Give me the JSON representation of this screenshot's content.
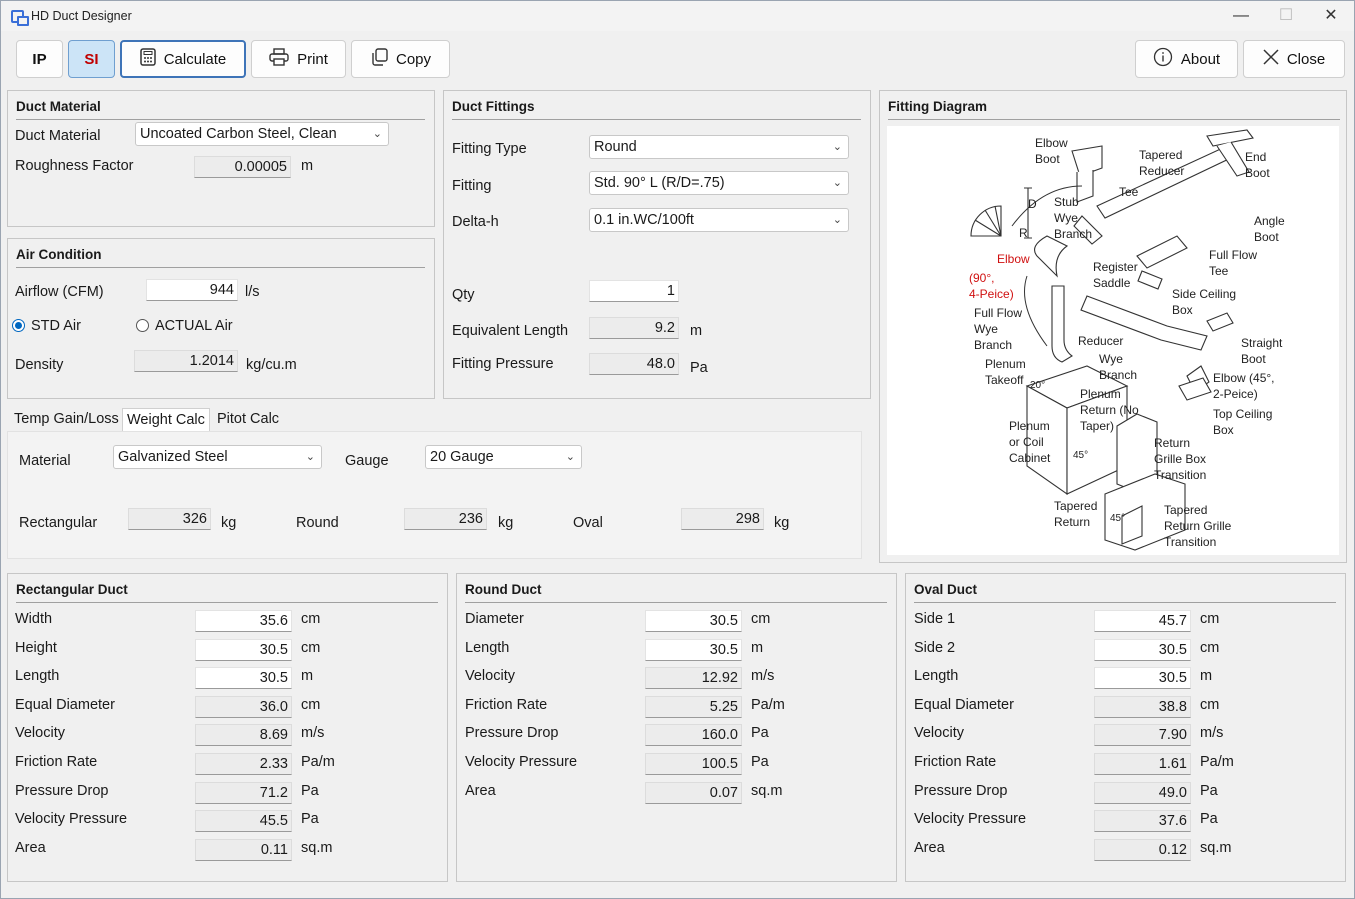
{
  "window": {
    "title": "HD Duct Designer",
    "minimize": "—",
    "maximize": "☐",
    "close": "✕"
  },
  "toolbar": {
    "ip": "IP",
    "si": "SI",
    "calculate": "Calculate",
    "print": "Print",
    "copy": "Copy",
    "about": "About",
    "close": "Close"
  },
  "duct_material": {
    "header": "Duct Material",
    "material_label": "Duct Material",
    "material_value": "Uncoated Carbon Steel, Clean",
    "roughness_label": "Roughness Factor",
    "roughness_value": "0.00005",
    "roughness_unit": "m"
  },
  "air_condition": {
    "header": "Air Condition",
    "airflow_label": "Airflow (CFM)",
    "airflow_value": "944",
    "airflow_unit": "l/s",
    "std_air": "STD Air",
    "actual_air": "ACTUAL Air",
    "density_label": "Density",
    "density_value": "1.2014",
    "density_unit": "kg/cu.m"
  },
  "fittings": {
    "header": "Duct Fittings",
    "type_label": "Fitting Type",
    "type_value": "Round",
    "fitting_label": "Fitting",
    "fitting_value": "Std. 90° L (R/D=.75)",
    "deltah_label": "Delta-h",
    "deltah_value": "0.1 in.WC/100ft",
    "qty_label": "Qty",
    "qty_value": "1",
    "eqlen_label": "Equivalent Length",
    "eqlen_value": "9.2",
    "eqlen_unit": "m",
    "pressure_label": "Fitting Pressure",
    "pressure_value": "48.0",
    "pressure_unit": "Pa"
  },
  "tabs": {
    "temp": "Temp Gain/Loss",
    "weight": "Weight Calc",
    "pitot": "Pitot Calc"
  },
  "weight": {
    "material_label": "Material",
    "material_value": "Galvanized Steel",
    "gauge_label": "Gauge",
    "gauge_value": "20 Gauge",
    "rect_label": "Rectangular",
    "rect_value": "326",
    "round_label": "Round",
    "round_value": "236",
    "oval_label": "Oval",
    "oval_value": "298",
    "unit": "kg"
  },
  "diagram": {
    "header": "Fitting Diagram",
    "labels": {
      "elbow_boot": "Elbow\nBoot",
      "tapered_reducer": "Tapered\nReducer",
      "end_boot": "End\nBoot",
      "tee": "Tee",
      "stub_wye": "Stub\nWye\nBranch",
      "angle_boot": "Angle\nBoot",
      "d": "D",
      "r": "R",
      "elbow": "Elbow",
      "elbow90": "(90°,\n4-Peice)",
      "register": "Register\nSaddle",
      "fullflow_tee": "Full Flow\nTee",
      "side_ceiling": "Side Ceiling\nBox",
      "fullflow_wye": "Full Flow\nWye\nBranch",
      "reducer": "Reducer",
      "wye_branch": "Wye\nBranch",
      "straight_boot": "Straight\nBoot",
      "plenum_takeoff": "Plenum\nTakeoff",
      "deg20": "20°",
      "plenum_return": "Plenum\nReturn (No\nTaper)",
      "elbow45": "Elbow (45°,\n2-Peice)",
      "top_ceiling": "Top Ceiling\nBox",
      "plenum_coil": "Plenum\nor Coil\nCabinet",
      "deg45a": "45°",
      "return_grille": "Return\nGrille Box\nTransition",
      "tapered_return": "Tapered\nReturn",
      "deg45b": "45°",
      "tapered_return_grille": "Tapered\nReturn Grille\nTransition"
    }
  },
  "rect": {
    "header": "Rectangular Duct",
    "rows": [
      {
        "label": "Width",
        "value": "35.6",
        "unit": "cm",
        "ro": false
      },
      {
        "label": "Height",
        "value": "30.5",
        "unit": "cm",
        "ro": false
      },
      {
        "label": "Length",
        "value": "30.5",
        "unit": "m",
        "ro": false
      },
      {
        "label": "Equal Diameter",
        "value": "36.0",
        "unit": "cm",
        "ro": true
      },
      {
        "label": "Velocity",
        "value": "8.69",
        "unit": "m/s",
        "ro": true
      },
      {
        "label": "Friction Rate",
        "value": "2.33",
        "unit": "Pa/m",
        "ro": true
      },
      {
        "label": "Pressure Drop",
        "value": "71.2",
        "unit": "Pa",
        "ro": true
      },
      {
        "label": "Velocity Pressure",
        "value": "45.5",
        "unit": "Pa",
        "ro": true
      },
      {
        "label": "Area",
        "value": "0.11",
        "unit": "sq.m",
        "ro": true
      }
    ]
  },
  "round": {
    "header": "Round Duct",
    "rows": [
      {
        "label": "Diameter",
        "value": "30.5",
        "unit": "cm",
        "ro": false
      },
      {
        "label": "Length",
        "value": "30.5",
        "unit": "m",
        "ro": false
      },
      {
        "label": "Velocity",
        "value": "12.92",
        "unit": "m/s",
        "ro": true
      },
      {
        "label": "Friction Rate",
        "value": "5.25",
        "unit": "Pa/m",
        "ro": true
      },
      {
        "label": "Pressure Drop",
        "value": "160.0",
        "unit": "Pa",
        "ro": true
      },
      {
        "label": "Velocity Pressure",
        "value": "100.5",
        "unit": "Pa",
        "ro": true
      },
      {
        "label": "Area",
        "value": "0.07",
        "unit": "sq.m",
        "ro": true
      }
    ]
  },
  "oval": {
    "header": "Oval Duct",
    "rows": [
      {
        "label": "Side 1",
        "value": "45.7",
        "unit": "cm",
        "ro": false
      },
      {
        "label": "Side 2",
        "value": "30.5",
        "unit": "cm",
        "ro": false
      },
      {
        "label": "Length",
        "value": "30.5",
        "unit": "m",
        "ro": false
      },
      {
        "label": "Equal Diameter",
        "value": "38.8",
        "unit": "cm",
        "ro": true
      },
      {
        "label": "Velocity",
        "value": "7.90",
        "unit": "m/s",
        "ro": true
      },
      {
        "label": "Friction Rate",
        "value": "1.61",
        "unit": "Pa/m",
        "ro": true
      },
      {
        "label": "Pressure Drop",
        "value": "49.0",
        "unit": "Pa",
        "ro": true
      },
      {
        "label": "Velocity Pressure",
        "value": "37.6",
        "unit": "Pa",
        "ro": true
      },
      {
        "label": "Area",
        "value": "0.12",
        "unit": "sq.m",
        "ro": true
      }
    ]
  }
}
